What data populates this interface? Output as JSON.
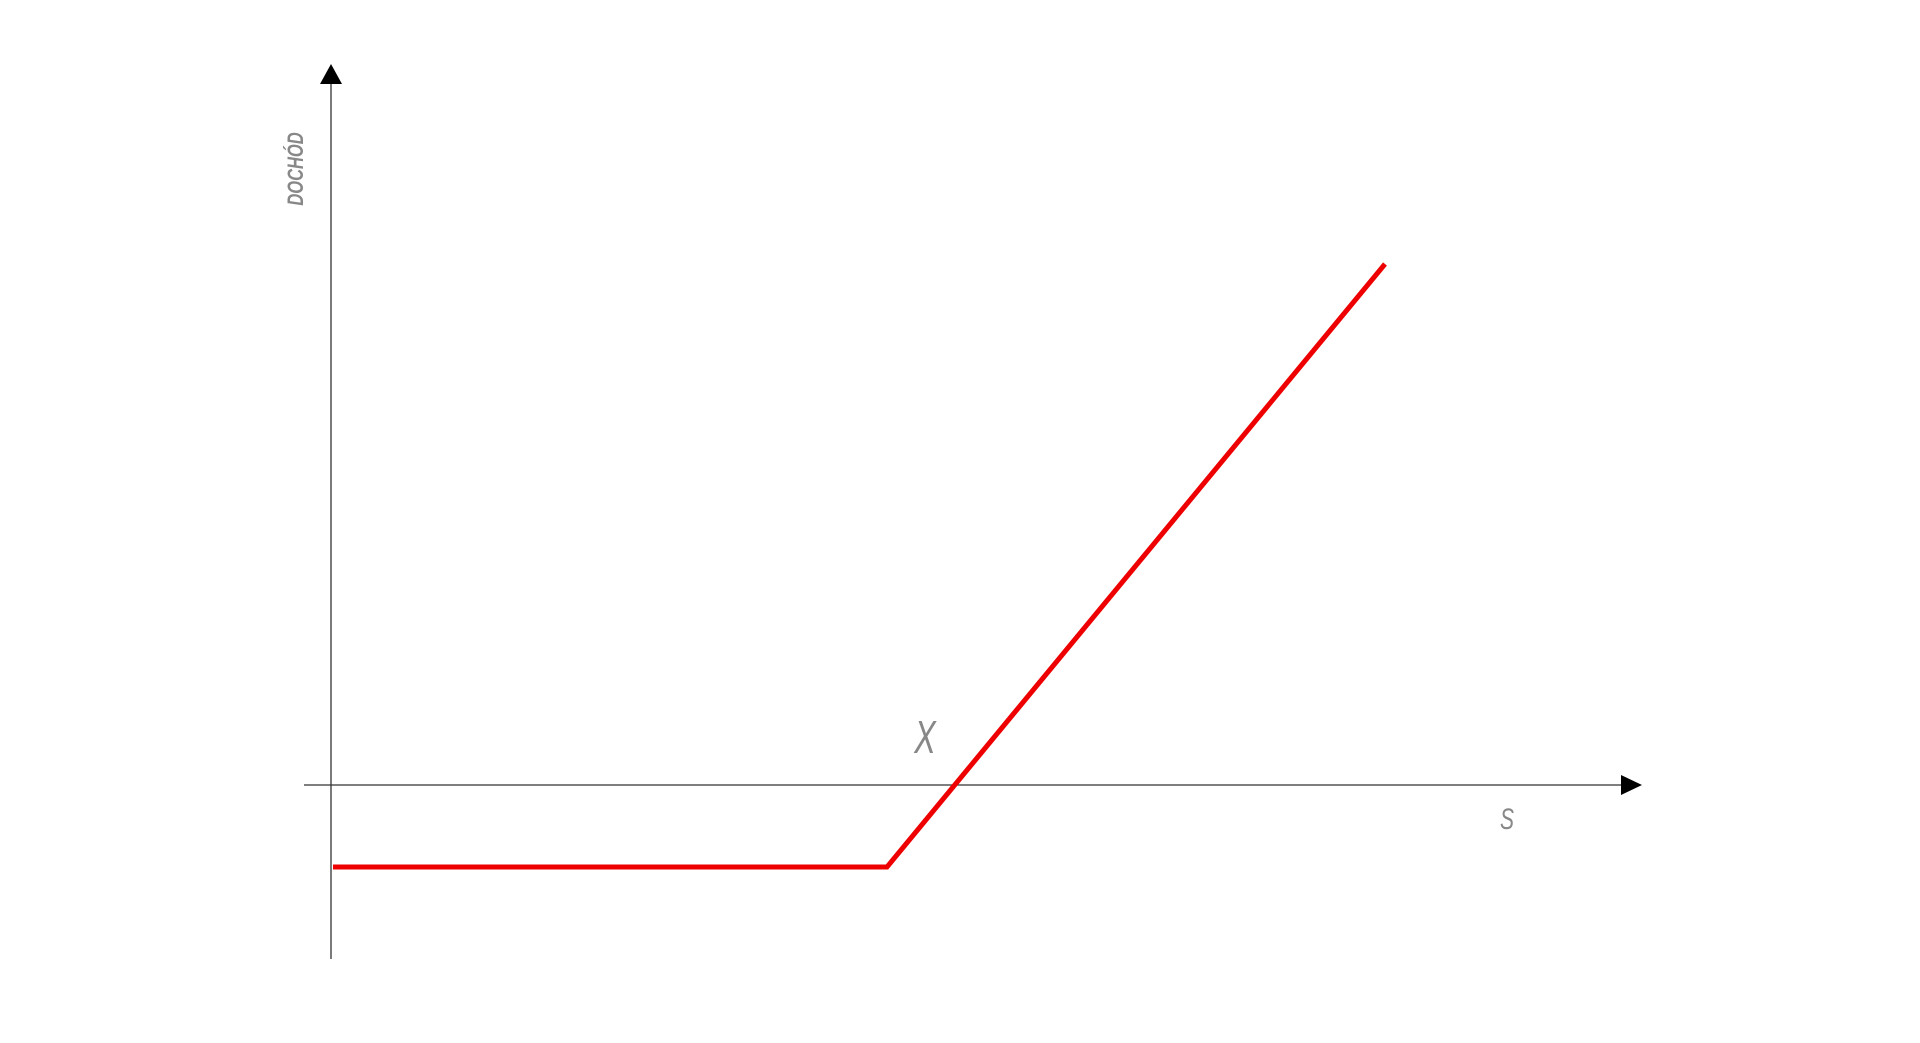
{
  "labels": {
    "y_axis": "DOCHÓD",
    "x_axis": "S",
    "strike": "X"
  }
}
